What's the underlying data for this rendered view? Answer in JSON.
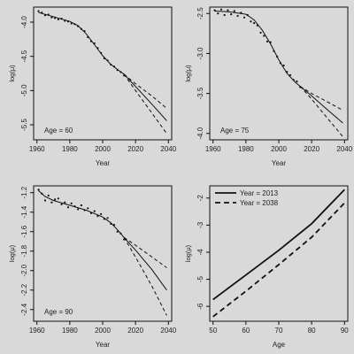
{
  "chart_data": [
    {
      "type": "line",
      "xlabel": "Year",
      "ylabel": "log(μ)",
      "annotation": "Age = 60",
      "xlim": [
        1958,
        2042
      ],
      "ylim": [
        -5.72,
        -3.78
      ],
      "xticks": [
        1960,
        1980,
        2000,
        2020,
        2040
      ],
      "yticks": [
        -4.0,
        -4.5,
        -5.0,
        -5.5
      ],
      "ytick_labels": [
        "-4.0",
        "-4.5",
        "-5.0",
        "-5.5"
      ],
      "series": [
        {
          "role": "fitted",
          "style": "solid",
          "x": [
            1961,
            1970,
            1980,
            1985,
            1990,
            1995,
            2000,
            2005,
            2010,
            2013
          ],
          "y": [
            -3.86,
            -3.92,
            -3.99,
            -4.05,
            -4.17,
            -4.33,
            -4.49,
            -4.62,
            -4.71,
            -4.76
          ]
        },
        {
          "role": "forecast",
          "style": "solid",
          "x": [
            2013,
            2020,
            2030,
            2039
          ],
          "y": [
            -4.76,
            -4.94,
            -5.2,
            -5.44
          ]
        },
        {
          "role": "upper bound",
          "style": "dashed",
          "x": [
            2013,
            2020,
            2030,
            2039
          ],
          "y": [
            -4.76,
            -4.9,
            -5.08,
            -5.26
          ]
        },
        {
          "role": "lower bound",
          "style": "dashed",
          "x": [
            2013,
            2020,
            2030,
            2039
          ],
          "y": [
            -4.76,
            -5.0,
            -5.33,
            -5.63
          ]
        }
      ],
      "points": {
        "x": [
          1961,
          1963,
          1965,
          1967,
          1969,
          1971,
          1973,
          1975,
          1977,
          1979,
          1981,
          1983,
          1985,
          1987,
          1989,
          1991,
          1993,
          1995,
          1997,
          1999,
          2001,
          2003,
          2005,
          2007,
          2009,
          2011,
          2013
        ],
        "y": [
          -3.84,
          -3.86,
          -3.9,
          -3.89,
          -3.93,
          -3.94,
          -3.96,
          -3.95,
          -3.98,
          -3.99,
          -4.02,
          -4.03,
          -4.06,
          -4.1,
          -4.13,
          -4.22,
          -4.28,
          -4.31,
          -4.38,
          -4.45,
          -4.53,
          -4.56,
          -4.62,
          -4.65,
          -4.7,
          -4.73,
          -4.78
        ]
      }
    },
    {
      "type": "line",
      "xlabel": "Year",
      "ylabel": "log(μ)",
      "annotation": "Age = 75",
      "xlim": [
        1958,
        2042
      ],
      "ylim": [
        -4.08,
        -2.42
      ],
      "xticks": [
        1960,
        1980,
        2000,
        2020,
        2040
      ],
      "yticks": [
        -2.5,
        -3.0,
        -3.5,
        -4.0
      ],
      "ytick_labels": [
        "-2.5",
        "-3.0",
        "-3.5",
        "-4.0"
      ],
      "series": [
        {
          "role": "fitted",
          "style": "solid",
          "x": [
            1961,
            1970,
            1980,
            1985,
            1990,
            1995,
            2000,
            2005,
            2010,
            2013
          ],
          "y": [
            -2.47,
            -2.48,
            -2.51,
            -2.58,
            -2.71,
            -2.88,
            -3.08,
            -3.25,
            -3.36,
            -3.41
          ]
        },
        {
          "role": "forecast",
          "style": "solid",
          "x": [
            2013,
            2020,
            2030,
            2039
          ],
          "y": [
            -3.41,
            -3.53,
            -3.71,
            -3.87
          ]
        },
        {
          "role": "upper bound",
          "style": "dashed",
          "x": [
            2013,
            2020,
            2030,
            2039
          ],
          "y": [
            -3.41,
            -3.5,
            -3.61,
            -3.71
          ]
        },
        {
          "role": "lower bound",
          "style": "dashed",
          "x": [
            2013,
            2020,
            2030,
            2039
          ],
          "y": [
            -3.41,
            -3.57,
            -3.82,
            -4.04
          ]
        }
      ],
      "points": {
        "x": [
          1961,
          1963,
          1965,
          1967,
          1969,
          1971,
          1973,
          1975,
          1977,
          1979,
          1981,
          1983,
          1985,
          1987,
          1989,
          1991,
          1993,
          1995,
          1997,
          1999,
          2001,
          2003,
          2005,
          2007,
          2009,
          2011,
          2013
        ],
        "y": [
          -2.46,
          -2.5,
          -2.45,
          -2.52,
          -2.46,
          -2.51,
          -2.47,
          -2.53,
          -2.49,
          -2.55,
          -2.52,
          -2.6,
          -2.62,
          -2.65,
          -2.74,
          -2.78,
          -2.85,
          -2.86,
          -2.97,
          -3.04,
          -3.12,
          -3.15,
          -3.23,
          -3.27,
          -3.33,
          -3.35,
          -3.42
        ]
      }
    },
    {
      "type": "line",
      "xlabel": "Year",
      "ylabel": "log(μ)",
      "annotation": "Age = 90",
      "xlim": [
        1958,
        2042
      ],
      "ylim": [
        -2.52,
        -1.13
      ],
      "xticks": [
        1960,
        1980,
        2000,
        2020,
        2040
      ],
      "yticks": [
        -1.2,
        -1.4,
        -1.6,
        -1.8,
        -2.0,
        -2.2,
        -2.4
      ],
      "ytick_labels": [
        "-1.2",
        "-1.4",
        "-1.6",
        "-1.8",
        "-2.0",
        "-2.2",
        "-2.4"
      ],
      "series": [
        {
          "role": "fitted",
          "style": "solid",
          "x": [
            1961,
            1965,
            1970,
            1980,
            1990,
            2000,
            2005,
            2010,
            2013
          ],
          "y": [
            -1.18,
            -1.24,
            -1.28,
            -1.33,
            -1.38,
            -1.45,
            -1.51,
            -1.6,
            -1.66
          ]
        },
        {
          "role": "forecast",
          "style": "solid",
          "x": [
            2013,
            2020,
            2030,
            2039
          ],
          "y": [
            -1.66,
            -1.79,
            -1.99,
            -2.2
          ]
        },
        {
          "role": "upper bound",
          "style": "dashed",
          "x": [
            2013,
            2020,
            2030,
            2039
          ],
          "y": [
            -1.66,
            -1.74,
            -1.86,
            -1.97
          ]
        },
        {
          "role": "lower bound",
          "style": "dashed",
          "x": [
            2013,
            2020,
            2030,
            2039
          ],
          "y": [
            -1.66,
            -1.86,
            -2.16,
            -2.46
          ]
        }
      ],
      "points": {
        "x": [
          1961,
          1963,
          1965,
          1967,
          1969,
          1971,
          1973,
          1975,
          1977,
          1979,
          1981,
          1983,
          1985,
          1987,
          1989,
          1991,
          1993,
          1995,
          1997,
          1999,
          2001,
          2003,
          2005,
          2007,
          2009,
          2011,
          2013
        ],
        "y": [
          -1.17,
          -1.21,
          -1.28,
          -1.23,
          -1.3,
          -1.27,
          -1.26,
          -1.32,
          -1.3,
          -1.35,
          -1.31,
          -1.34,
          -1.37,
          -1.33,
          -1.38,
          -1.36,
          -1.41,
          -1.39,
          -1.44,
          -1.42,
          -1.47,
          -1.46,
          -1.52,
          -1.53,
          -1.6,
          -1.62,
          -1.68
        ]
      }
    },
    {
      "type": "line",
      "xlabel": "Age",
      "ylabel": "log(μ)",
      "xlim": [
        49,
        91
      ],
      "ylim": [
        -6.55,
        -1.55
      ],
      "xticks": [
        50,
        60,
        70,
        80,
        90
      ],
      "yticks": [
        -2,
        -3,
        -4,
        -5,
        -6
      ],
      "ytick_labels": [
        "-2",
        "-3",
        "-4",
        "-5",
        "-6"
      ],
      "legend": {
        "placement": "top-left",
        "entries": [
          {
            "label": "Year = 2013",
            "style": "solid"
          },
          {
            "label": "Year = 2038",
            "style": "dashed"
          }
        ]
      },
      "series": [
        {
          "name": "Year = 2013",
          "style": "solid",
          "x": [
            50,
            60,
            70,
            80,
            90
          ],
          "y": [
            -5.75,
            -4.84,
            -3.93,
            -2.95,
            -1.69
          ]
        },
        {
          "name": "Year = 2038",
          "style": "dashed",
          "x": [
            50,
            60,
            70,
            80,
            90
          ],
          "y": [
            -6.38,
            -5.44,
            -4.46,
            -3.45,
            -2.18
          ]
        }
      ]
    }
  ]
}
